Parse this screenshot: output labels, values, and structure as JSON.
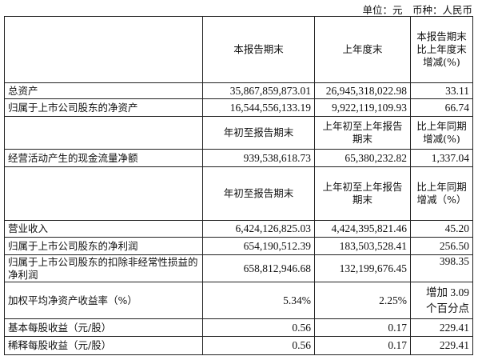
{
  "unit_line": "单位：元　币种：人民币",
  "section1": {
    "headers": [
      "",
      "本报告期末",
      "上年度末",
      "本报告期末比上年度末增减(%)"
    ],
    "rows": [
      [
        "总资产",
        "35,867,859,873.01",
        "26,945,318,022.98",
        "33.11"
      ],
      [
        "归属于上市公司股东的净资产",
        "16,544,556,133.19",
        "9,922,119,109.93",
        "66.74"
      ]
    ]
  },
  "section2": {
    "headers": [
      "",
      "年初至报告期末",
      "上年初至上年报告期末",
      "比上年同期增减(%)"
    ],
    "rows": [
      [
        "经营活动产生的现金流量净额",
        "939,538,618.73",
        "65,380,232.82",
        "1,337.04"
      ]
    ]
  },
  "section3": {
    "headers": [
      "",
      "年初至报告期末",
      "上年初至上年报告期末",
      "比上年同期增减（%）"
    ],
    "rows": [
      [
        "营业收入",
        "6,424,126,825.03",
        "4,424,395,821.46",
        "45.20"
      ],
      [
        "归属于上市公司股东的净利润",
        "654,190,512.39",
        "183,503,528.41",
        "256.50"
      ],
      [
        "归属于上市公司股东的扣除非经常性损益的净利润",
        "658,812,946.68",
        "132,199,676.45",
        "398.35"
      ],
      [
        "加权平均净资产收益率（%）",
        "5.34%",
        "2.25%",
        "增加 3.09 个百分点"
      ],
      [
        "基本每股收益（元/股）",
        "0.56",
        "0.17",
        "229.41"
      ],
      [
        "稀释每股收益（元/股）",
        "0.56",
        "0.17",
        "229.41"
      ]
    ]
  }
}
